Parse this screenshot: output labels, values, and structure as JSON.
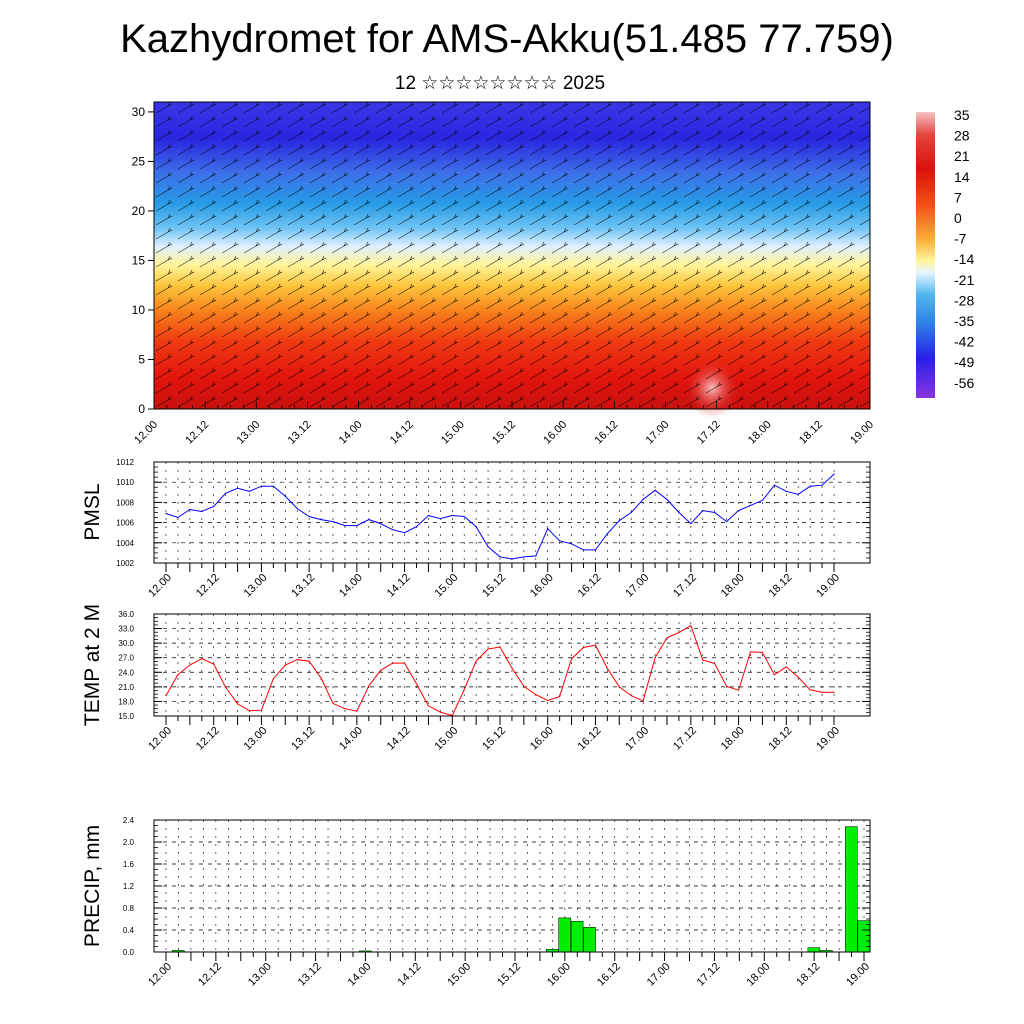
{
  "header": {
    "title": "Kazhydromet for AMS-Akku(51.485 77.759)",
    "subtitle": "12 ☆☆☆☆☆☆☆☆ 2025"
  },
  "chart_data": [
    {
      "type": "heatmap",
      "title": "",
      "xlabel": "",
      "ylabel": "",
      "x_tick_labels": [
        "12.00",
        "12.12",
        "13.00",
        "13.12",
        "14.00",
        "14.12",
        "15.00",
        "15.12",
        "16.00",
        "16.12",
        "17.00",
        "17.12",
        "18.00",
        "18.12",
        "19.00"
      ],
      "y_ticks": [
        0,
        5,
        10,
        15,
        20,
        25,
        30
      ],
      "ylim": [
        0,
        31
      ],
      "colorbar_labels": [
        "35",
        "28",
        "21",
        "14",
        "7",
        "0",
        "-7",
        "-14",
        "-21",
        "-28",
        "-35",
        "-42",
        "-49",
        "-56"
      ],
      "colors": {
        "warm": "#e0120d",
        "cold": "#2a1fe6",
        "mid": "#fff799",
        "line": "#000000"
      },
      "overlay": "wind barbs and contour lines"
    },
    {
      "type": "line",
      "ylabel": "PMSL",
      "x_tick_labels": [
        "12.00",
        "12.12",
        "13.00",
        "13.12",
        "14.00",
        "14.12",
        "15.00",
        "15.12",
        "16.00",
        "16.12",
        "17.00",
        "17.12",
        "18.00",
        "18.12",
        "19.00"
      ],
      "y_ticks": [
        "1002",
        "1004",
        "1006",
        "1008",
        "1010",
        "1012"
      ],
      "ylim": [
        1002,
        1012
      ],
      "grid": true,
      "color": "#0000ff",
      "values": [
        1006.9,
        1006.5,
        1007.3,
        1007.1,
        1007.6,
        1008.9,
        1009.4,
        1009.1,
        1009.6,
        1009.6,
        1008.6,
        1007.4,
        1006.6,
        1006.3,
        1006.1,
        1005.7,
        1005.7,
        1006.3,
        1005.9,
        1005.3,
        1005.0,
        1005.6,
        1006.7,
        1006.4,
        1006.7,
        1006.6,
        1005.6,
        1003.6,
        1002.6,
        1002.4,
        1002.6,
        1002.7,
        1005.4,
        1004.2,
        1003.9,
        1003.3,
        1003.3,
        1004.9,
        1006.2,
        1007.0,
        1008.3,
        1009.2,
        1008.3,
        1007.0,
        1005.9,
        1007.2,
        1007.0,
        1006.1,
        1007.2,
        1007.7,
        1008.2,
        1009.7,
        1009.1,
        1008.8,
        1009.6,
        1009.7,
        1010.8
      ]
    },
    {
      "type": "line",
      "ylabel": "TEMP at 2 M",
      "x_tick_labels": [
        "12.00",
        "12.12",
        "13.00",
        "13.12",
        "14.00",
        "14.12",
        "15.00",
        "15.12",
        "16.00",
        "16.12",
        "17.00",
        "17.12",
        "18.00",
        "18.12",
        "19.00"
      ],
      "y_ticks": [
        "15.0",
        "18.0",
        "21.0",
        "24.0",
        "27.0",
        "30.0",
        "33.0",
        "36.0"
      ],
      "ylim": [
        15,
        36
      ],
      "grid": true,
      "color": "#ff0000",
      "values": [
        19.2,
        23.5,
        25.5,
        26.8,
        25.7,
        20.9,
        17.5,
        16.1,
        16.2,
        22.7,
        25.5,
        26.6,
        26.3,
        22.8,
        17.6,
        16.5,
        16.0,
        21.2,
        24.4,
        25.9,
        25.9,
        21.6,
        17.1,
        15.8,
        15.1,
        20.4,
        26.3,
        28.8,
        29.2,
        24.9,
        21.1,
        19.4,
        18.2,
        19.0,
        26.8,
        29.1,
        29.6,
        24.8,
        21.0,
        19.2,
        18.1,
        27.0,
        31.1,
        32.2,
        33.6,
        26.5,
        25.8,
        21.1,
        20.3,
        28.2,
        28.1,
        23.5,
        25.1,
        23.0,
        20.4,
        19.9,
        19.9
      ]
    },
    {
      "type": "bar",
      "ylabel": "PRECIP, mm",
      "x_tick_labels": [
        "12.00",
        "12.12",
        "13.00",
        "13.12",
        "14.00",
        "14.12",
        "15.00",
        "15.12",
        "16.00",
        "16.12",
        "17.00",
        "17.12",
        "18.00",
        "18.12",
        "19.00"
      ],
      "y_ticks": [
        "0.0",
        "0.4",
        "0.8",
        "1.2",
        "1.6",
        "2.0",
        "2.4"
      ],
      "ylim": [
        0,
        2.4
      ],
      "grid": true,
      "color": "#00ee00",
      "values": [
        0,
        0.03,
        0,
        0,
        0,
        0,
        0,
        0,
        0,
        0,
        0,
        0,
        0,
        0,
        0,
        0,
        0.02,
        0,
        0,
        0,
        0,
        0,
        0,
        0,
        0,
        0,
        0,
        0,
        0,
        0,
        0,
        0.05,
        0.62,
        0.56,
        0.45,
        0,
        0,
        0,
        0,
        0,
        0,
        0,
        0,
        0,
        0,
        0,
        0,
        0,
        0,
        0,
        0,
        0,
        0.08,
        0.03,
        0,
        2.28,
        0.57
      ]
    }
  ]
}
